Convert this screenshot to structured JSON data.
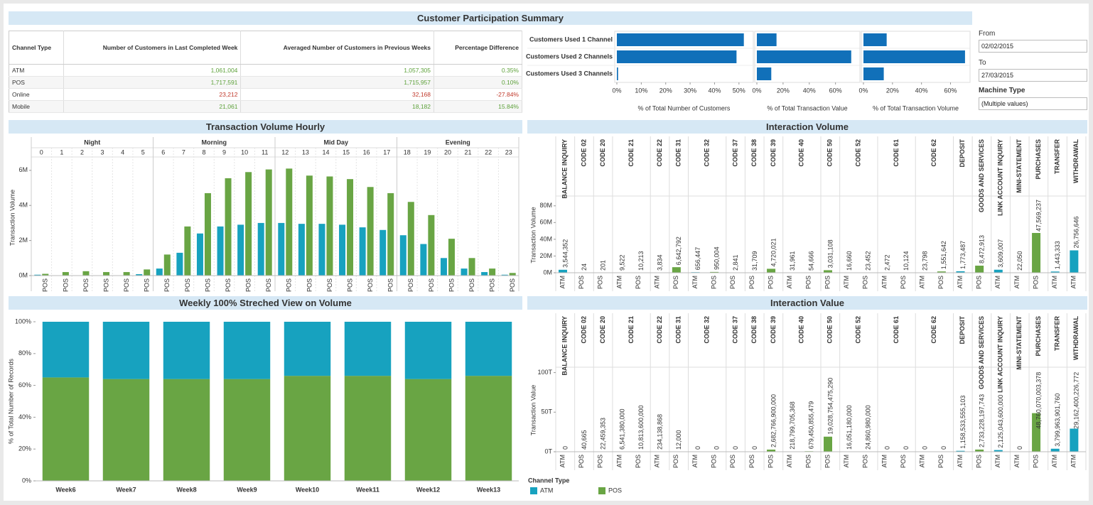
{
  "header": {
    "title": "Customer Participation Summary"
  },
  "table": {
    "columns": [
      "Channel Type",
      "Number of Customers in Last Completed Week",
      "Averaged Number of Customers in Previous Weeks",
      "Percentage Difference"
    ],
    "rows": [
      [
        "ATM",
        "1,061,004",
        "1,057,305",
        "0.35%"
      ],
      [
        "POS",
        "1,717,591",
        "1,715,957",
        "0.10%"
      ],
      [
        "Online",
        "23,212",
        "32,168",
        "-27.84%"
      ],
      [
        "Mobile",
        "21,061",
        "18,182",
        "15.84%"
      ]
    ]
  },
  "filters": {
    "from_label": "From",
    "from_value": "02/02/2015",
    "to_label": "To",
    "to_value": "27/03/2015",
    "machine_label": "Machine Type",
    "machine_value": "(Multiple values)"
  },
  "legend": {
    "title": "Channel Type"
  },
  "chart_data": [
    {
      "type": "bar",
      "orientation": "horizontal",
      "categories": [
        "Customers Used 1 Channel",
        "Customers Used 2 Channels",
        "Customers Used 3 Channels"
      ],
      "values": [
        52,
        49,
        0.5
      ],
      "color": "#1170b9",
      "xlim": [
        0,
        55
      ],
      "xticks": [
        {
          "value": 0,
          "label": "0%"
        },
        {
          "value": 10,
          "label": "10%"
        },
        {
          "value": 20,
          "label": "20%"
        },
        {
          "value": 30,
          "label": "30%"
        },
        {
          "value": 40,
          "label": "40%"
        },
        {
          "value": 50,
          "label": "50%"
        }
      ],
      "xlabel": "% of Total Number of Customers"
    },
    {
      "type": "bar",
      "orientation": "horizontal",
      "values": [
        15,
        72,
        11
      ],
      "color": "#1170b9",
      "xlim": [
        0,
        77
      ],
      "xticks": [
        {
          "value": 0,
          "label": "0%"
        },
        {
          "value": 20,
          "label": "20%"
        },
        {
          "value": 40,
          "label": "40%"
        },
        {
          "value": 60,
          "label": "60%"
        }
      ],
      "xlabel": "% of Total Transaction Value"
    },
    {
      "type": "bar",
      "orientation": "horizontal",
      "values": [
        16,
        70,
        14
      ],
      "color": "#1170b9",
      "xlim": [
        0,
        72
      ],
      "xticks": [
        {
          "value": 0,
          "label": "0%"
        },
        {
          "value": 20,
          "label": "20%"
        },
        {
          "value": 40,
          "label": "40%"
        },
        {
          "value": 60,
          "label": "60%"
        }
      ],
      "xlabel": "% of Total Transaction Volume"
    },
    {
      "type": "grouped_bar",
      "title": "Transaction Volume Hourly",
      "groups": [
        "Night",
        "Morning",
        "Mid Day",
        "Evening"
      ],
      "categories": [
        "0",
        "1",
        "2",
        "3",
        "4",
        "5",
        "6",
        "7",
        "8",
        "9",
        "10",
        "11",
        "12",
        "13",
        "14",
        "15",
        "16",
        "17",
        "18",
        "19",
        "20",
        "21",
        "22",
        "23"
      ],
      "series": [
        {
          "color": "#17a2bf",
          "values": [
            50000,
            20000,
            20000,
            10000,
            20000,
            80000,
            400000,
            1300000,
            2400000,
            2800000,
            2900000,
            3000000,
            3000000,
            2950000,
            2950000,
            2900000,
            2750000,
            2600000,
            2300000,
            1800000,
            1000000,
            400000,
            200000,
            50000
          ]
        },
        {
          "name": "POS",
          "color": "#69a544",
          "values": [
            100000,
            200000,
            250000,
            200000,
            200000,
            350000,
            1200000,
            2800000,
            4700000,
            5550000,
            5900000,
            6050000,
            6100000,
            5700000,
            5650000,
            5500000,
            5050000,
            4700000,
            4200000,
            3450000,
            2100000,
            1000000,
            400000,
            150000
          ]
        }
      ],
      "ylim": [
        0,
        6600000
      ],
      "yticks": [
        {
          "value": 0,
          "label": "0M"
        },
        {
          "value": 2000000,
          "label": "2M"
        },
        {
          "value": 4000000,
          "label": "4M"
        },
        {
          "value": 6000000,
          "label": "6M"
        }
      ],
      "ylabel": "Transaction Volume"
    },
    {
      "type": "faceted_bar",
      "title": "Interaction Volume",
      "categories": [
        "BALANCE INQUIRY",
        "CODE 02",
        "CODE 20",
        "CODE 21",
        "CODE 22",
        "CODE 31",
        "CODE 32",
        "CODE 37",
        "CODE 38",
        "CODE 39",
        "CODE 40",
        "CODE 50",
        "CODE 52",
        "CODE 61",
        "CODE 62",
        "DEPOSIT",
        "GOODS AND SERVICES",
        "LINK ACCOUNT INQUIRY",
        "MINI-STATEMENT",
        "PURCHASES",
        "TRANSFER",
        "WITHDRAWAL"
      ],
      "series": [
        {
          "name": "ATM",
          "color": "#17a2bf",
          "values": [
            3544352,
            null,
            null,
            9522,
            3834,
            null,
            656447,
            null,
            null,
            null,
            31961,
            null,
            16660,
            2472,
            23798,
            1773487,
            null,
            3609007,
            22050,
            null,
            1443333,
            26756646
          ],
          "value_labels": [
            "3,544,352",
            null,
            null,
            "9,522",
            "3,834",
            null,
            "656,447",
            null,
            null,
            null,
            "31,961",
            null,
            "16,660",
            "2,472",
            "23,798",
            "1,773,487",
            null,
            "3,609,007",
            "22,050",
            null,
            "1,443,333",
            "26,756,646"
          ]
        },
        {
          "name": "POS",
          "color": "#69a544",
          "values": [
            null,
            24,
            201,
            10213,
            null,
            6642792,
            950004,
            2841,
            31709,
            4720021,
            54666,
            3031108,
            23452,
            10124,
            1551642,
            null,
            8472913,
            null,
            null,
            47569237,
            null,
            null
          ],
          "value_labels": [
            null,
            "24",
            "201",
            "10,213",
            null,
            "6,642,792",
            "950,004",
            "2,841",
            "31,709",
            "4,720,021",
            "54,666",
            "3,031,108",
            "23,452",
            "10,124",
            "1,551,642",
            null,
            "8,472,913",
            null,
            null,
            "47,569,237",
            null,
            null
          ]
        }
      ],
      "ylim": [
        0,
        90000000
      ],
      "yticks": [
        {
          "value": 0,
          "label": "0M"
        },
        {
          "value": 20000000,
          "label": "20M"
        },
        {
          "value": 40000000,
          "label": "40M"
        },
        {
          "value": 60000000,
          "label": "60M"
        },
        {
          "value": 80000000,
          "label": "80M"
        }
      ],
      "ylabel": "Transaction Volume"
    },
    {
      "type": "stacked_bar",
      "title": "Weekly 100% Streched View on Volume",
      "categories": [
        "Week6",
        "Week7",
        "Week8",
        "Week9",
        "Week10",
        "Week11",
        "Week12",
        "Week13"
      ],
      "series": [
        {
          "color": "#69a544",
          "values": [
            65,
            64,
            64,
            64,
            66,
            66,
            64,
            66
          ]
        },
        {
          "color": "#17a2bf",
          "values": [
            35,
            36,
            36,
            36,
            34,
            34,
            36,
            34
          ]
        }
      ],
      "ylim": [
        0,
        100
      ],
      "yticks": [
        {
          "value": 0,
          "label": "0%"
        },
        {
          "value": 20,
          "label": "20%"
        },
        {
          "value": 40,
          "label": "40%"
        },
        {
          "value": 60,
          "label": "60%"
        },
        {
          "value": 80,
          "label": "80%"
        },
        {
          "value": 100,
          "label": "100%"
        }
      ],
      "ylabel": "% of Total Number of Records"
    },
    {
      "type": "faceted_bar",
      "title": "Interaction Value",
      "categories": [
        "BALANCE INQUIRY",
        "CODE 02",
        "CODE 20",
        "CODE 21",
        "CODE 22",
        "CODE 31",
        "CODE 32",
        "CODE 37",
        "CODE 38",
        "CODE 39",
        "CODE 40",
        "CODE 50",
        "CODE 52",
        "CODE 61",
        "CODE 62",
        "DEPOSIT",
        "GOODS AND SERVICES",
        "LINK ACCOUNT INQUIRY",
        "MINI-STATEMENT",
        "PURCHASES",
        "TRANSFER",
        "WITHDRAWAL"
      ],
      "series": [
        {
          "name": "ATM",
          "color": "#17a2bf",
          "values": [
            0,
            null,
            null,
            6541380000,
            234138868,
            null,
            0,
            null,
            null,
            null,
            218799705368,
            null,
            16051180000,
            0,
            0,
            1158533555103,
            null,
            2125043600000,
            0,
            null,
            3799963901760,
            29162400226772
          ],
          "value_labels": [
            "0",
            null,
            null,
            "6,541,380,000",
            "234,138,868",
            null,
            "0",
            null,
            null,
            null,
            "218,799,705,368",
            null,
            "16,051,180,000",
            "0",
            "0",
            "1,158,533,555,103",
            null,
            "2,125,043,600,000",
            "0",
            null,
            "3,799,963,901,760",
            "29,162,400,226,772"
          ]
        },
        {
          "name": "POS",
          "color": "#69a544",
          "values": [
            null,
            40665,
            22459353,
            10813600000,
            null,
            12000,
            0,
            0,
            0,
            2682766900000,
            679450855479,
            19028754475290,
            24860980000,
            0,
            0,
            null,
            2733228197743,
            null,
            null,
            48760070003378,
            null,
            null
          ],
          "value_labels": [
            null,
            "40,665",
            "22,459,353",
            "10,813,600,000",
            null,
            "12,000",
            "0",
            "0",
            "0",
            "2,682,766,900,000",
            "679,450,855,479",
            "19,028,754,475,290",
            "24,860,980,000",
            "0",
            "0",
            null,
            "2,733,228,197,743",
            null,
            null,
            "48,760,070,003,378",
            null,
            null
          ]
        }
      ],
      "ylim": [
        0,
        105000000000000
      ],
      "yticks": [
        {
          "value": 0,
          "label": "0T"
        },
        {
          "value": 50000000000000,
          "label": "50T"
        },
        {
          "value": 100000000000000,
          "label": "100T"
        }
      ],
      "ylabel": "Transaction Value"
    }
  ]
}
